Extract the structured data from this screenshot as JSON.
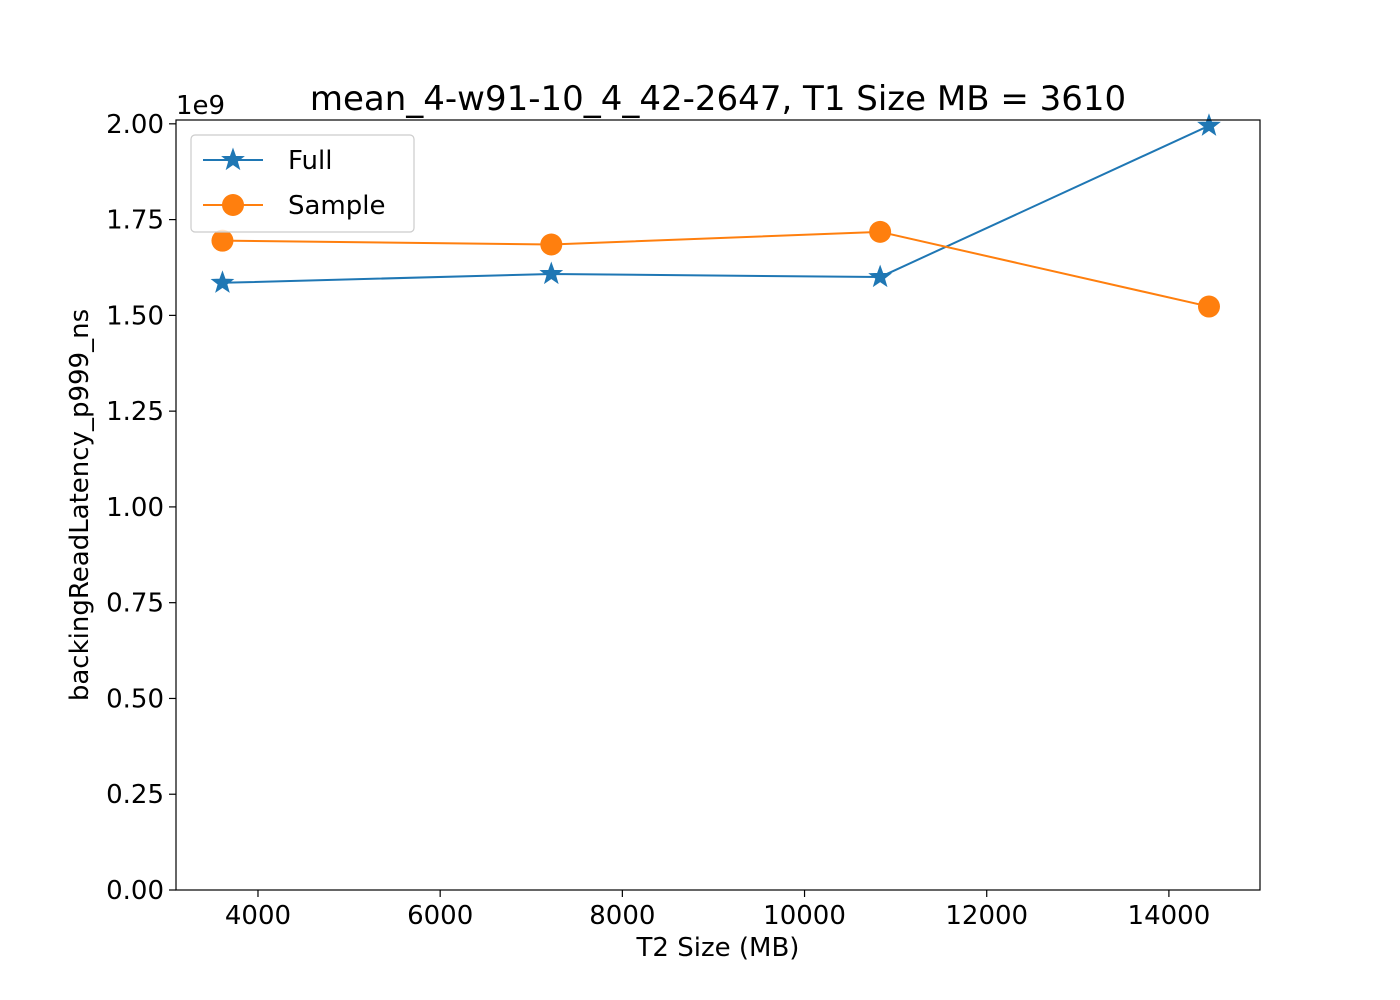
{
  "chart_data": {
    "type": "line",
    "title": "mean_4-w91-10_4_42-2647, T1 Size MB = 3610",
    "xlabel": "T2 Size (MB)",
    "ylabel": "backingReadLatency_p999_ns",
    "y_offset_label": "1e9",
    "xlim": [
      3100,
      15000
    ],
    "ylim": [
      0,
      2.01
    ],
    "x_ticks": [
      4000,
      6000,
      8000,
      10000,
      12000,
      14000
    ],
    "x_tick_labels": [
      "4000",
      "6000",
      "8000",
      "10000",
      "12000",
      "14000"
    ],
    "y_ticks": [
      0,
      0.25,
      0.5,
      0.75,
      1.0,
      1.25,
      1.5,
      1.75,
      2.0
    ],
    "y_tick_labels": [
      "0.00",
      "0.25",
      "0.50",
      "0.75",
      "1.00",
      "1.25",
      "1.50",
      "1.75",
      "2.00"
    ],
    "x": [
      3610,
      7220,
      10830,
      14440
    ],
    "series": [
      {
        "name": "Full",
        "marker": "star",
        "color": "#1f77b4",
        "values": [
          1.585,
          1.608,
          1.6,
          1.995
        ]
      },
      {
        "name": "Sample",
        "marker": "circle",
        "color": "#ff7f0e",
        "values": [
          1.695,
          1.685,
          1.718,
          1.523
        ]
      }
    ],
    "legend_position": "top-left",
    "grid": false
  }
}
